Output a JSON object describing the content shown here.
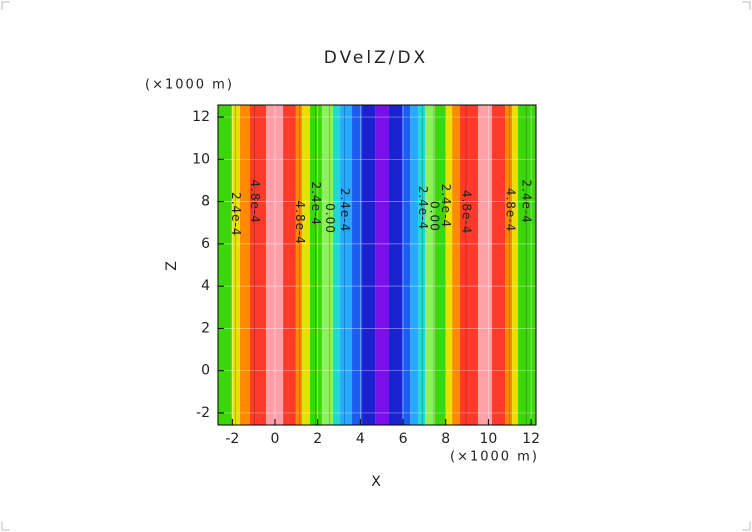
{
  "chart_data": {
    "type": "contour",
    "title": "DVelZ/DX",
    "x_label": "X",
    "y_label": "Z",
    "x_unit": "(×1000 m)",
    "y_unit": "(×1000 m)",
    "xlim": [
      -2.67,
      12.23
    ],
    "ylim": [
      -2.57,
      12.57
    ],
    "xticks": [
      -2,
      0,
      2,
      4,
      6,
      8,
      10,
      12
    ],
    "yticks": [
      -2,
      0,
      2,
      4,
      6,
      8,
      10,
      12
    ],
    "grid": true,
    "band_edges": [
      -2.67,
      -2.02,
      -1.64,
      -1.17,
      -0.42,
      0.38,
      0.98,
      1.27,
      1.64,
      2.2,
      2.72,
      3.05,
      3.61,
      4.08,
      4.69,
      5.34,
      5.95,
      6.33,
      6.7,
      7.03,
      7.5,
      7.97,
      8.3,
      8.67,
      9.52,
      10.17,
      10.78,
      11.11,
      11.39,
      12.23
    ],
    "band_colors": [
      "#3cd60a",
      "#e8e000",
      "#ff8a00",
      "#ff3a2a",
      "#ffa0a8",
      "#ff3a2a",
      "#ff8a00",
      "#e8e000",
      "#3cd60a",
      "#8ef060",
      "#22d8d0",
      "#28a8ff",
      "#1c5cf0",
      "#1a22d0",
      "#7a10e8",
      "#1a22d0",
      "#1c5cf0",
      "#28a8ff",
      "#22d8d0",
      "#8ef060",
      "#3cd60a",
      "#e8e000",
      "#ff8a00",
      "#ff3a2a",
      "#ffa0a8",
      "#ff3a2a",
      "#ff8a00",
      "#e8e000",
      "#3cd60a"
    ],
    "contours": [
      {
        "label": "2.4e-4",
        "x": -1.85,
        "y": 7.4
      },
      {
        "label": "4.8e-4",
        "x": -0.95,
        "y": 8.0
      },
      {
        "label": "4.8e-4",
        "x": 1.15,
        "y": 7.0
      },
      {
        "label": "2.4e-4",
        "x": 1.9,
        "y": 7.9
      },
      {
        "label": "0.00",
        "x": 2.55,
        "y": 7.2
      },
      {
        "label": "2.4e-4",
        "x": 3.25,
        "y": 7.6
      },
      {
        "label": "2.4e-4",
        "x": 6.9,
        "y": 7.7
      },
      {
        "label": "0.00",
        "x": 7.45,
        "y": 7.3
      },
      {
        "label": "2.4e-4",
        "x": 8.0,
        "y": 7.8
      },
      {
        "label": "4.8e-4",
        "x": 8.95,
        "y": 7.5
      },
      {
        "label": "4.8e-4",
        "x": 11.0,
        "y": 7.6
      },
      {
        "label": "2.4e-4",
        "x": 11.77,
        "y": 8.0
      }
    ]
  }
}
